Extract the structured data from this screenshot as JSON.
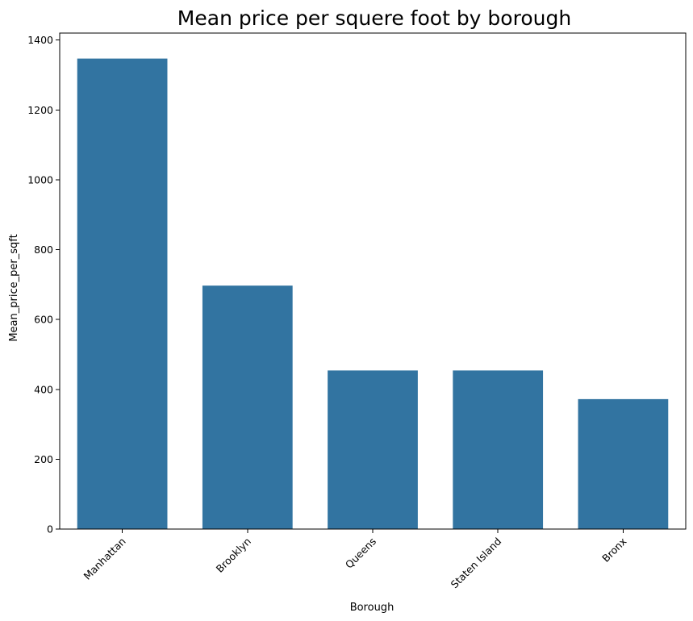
{
  "chart_data": {
    "type": "bar",
    "title": "Mean price per squere foot by borough",
    "xlabel": "Borough",
    "ylabel": "Mean_price_per_sqft",
    "categories": [
      "Manhattan",
      "Brooklyn",
      "Queens",
      "Staten Island",
      "Bronx"
    ],
    "values": [
      1347,
      697,
      454,
      454,
      372
    ],
    "ylim": [
      0,
      1420
    ],
    "yticks": [
      0,
      200,
      400,
      600,
      800,
      1000,
      1200,
      1400
    ],
    "xtick_rotation_deg": 45,
    "bar_color": "#3274a1",
    "grid": false,
    "legend": "none"
  }
}
